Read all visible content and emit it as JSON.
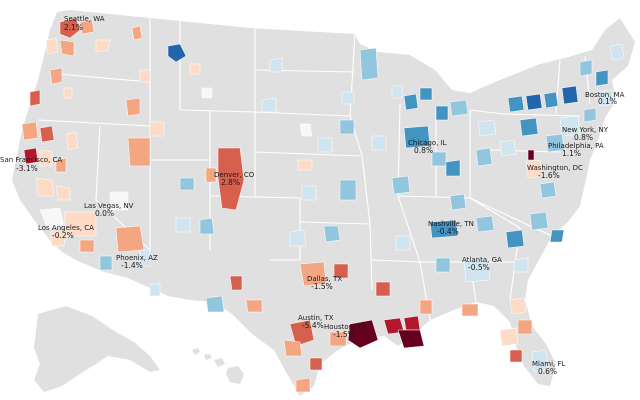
{
  "colors": {
    "land": "#e0e0e0",
    "water": "#ffffff",
    "state_border": "#ffffff",
    "scale": [
      "#67001f",
      "#b2182b",
      "#d6604d",
      "#f4a582",
      "#fddbc7",
      "#f7f7f7",
      "#d1e5f0",
      "#92c5de",
      "#4393c3",
      "#2166ac",
      "#053061"
    ]
  },
  "cities": [
    {
      "id": "seattle",
      "name": "Seattle, WA",
      "value": "2.1%"
    },
    {
      "id": "boston",
      "name": "Boston, MA",
      "value": "0.1%"
    },
    {
      "id": "newyork",
      "name": "New York, NY",
      "value": "0.8%"
    },
    {
      "id": "philadelphia",
      "name": "Philadelphia, PA",
      "value": "1.1%"
    },
    {
      "id": "chicago",
      "name": "Chicago, IL",
      "value": "0.8%"
    },
    {
      "id": "washington",
      "name": "Washington, DC",
      "value": "-1.6%"
    },
    {
      "id": "sanfrancisco",
      "name": "San Francisco, CA",
      "value": "-3.1%"
    },
    {
      "id": "denver",
      "name": "Denver, CO",
      "value": "2.8%"
    },
    {
      "id": "lasvegas",
      "name": "Las Vegas, NV",
      "value": "0.0%"
    },
    {
      "id": "losangeles",
      "name": "Los Angeles, CA",
      "value": "-0.2%"
    },
    {
      "id": "phoenix",
      "name": "Phoenix, AZ",
      "value": "-1.4%"
    },
    {
      "id": "nashville",
      "name": "Nashville, TN",
      "value": "-0.4%"
    },
    {
      "id": "atlanta",
      "name": "Atlanta, GA",
      "value": "-0.5%"
    },
    {
      "id": "dallas",
      "name": "Dallas, TX",
      "value": "-1.5%"
    },
    {
      "id": "austin",
      "name": "Austin, TX",
      "value": "-5.4%"
    },
    {
      "id": "houston",
      "name": "Houston, TX",
      "value": "-1.5%"
    },
    {
      "id": "miami",
      "name": "Miami, FL",
      "value": "0.6%"
    }
  ]
}
